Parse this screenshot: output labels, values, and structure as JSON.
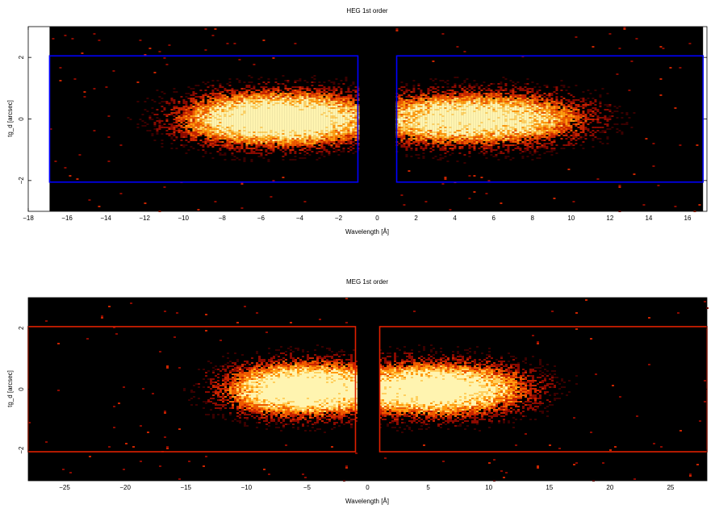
{
  "chart_data": [
    {
      "type": "heatmap",
      "title": "HEG 1st order",
      "xlabel": "Wavelength [Å]",
      "ylabel": "tg_d [arcsec]",
      "xlim": [
        -18,
        17
      ],
      "ylim": [
        -3,
        3
      ],
      "data_extent_x": [
        -16.9,
        16.8
      ],
      "grid": false,
      "background": "#000000",
      "colormap": [
        "#3a0000",
        "#8b0a00",
        "#c82400",
        "#ee5a00",
        "#ff9a10",
        "#ffd060",
        "#fff4b0"
      ],
      "x_ticks": [
        -18,
        -16,
        -14,
        -12,
        -10,
        -8,
        -6,
        -4,
        -2,
        0,
        2,
        4,
        6,
        8,
        10,
        12,
        14,
        16
      ],
      "y_ticks": [
        -2,
        0,
        2
      ],
      "regions": [
        {
          "x0": -16.9,
          "x1": -1.0,
          "y0": -2.05,
          "y1": 2.05,
          "color": "#0000ff"
        },
        {
          "x0": 1.0,
          "x1": 16.8,
          "y0": -2.05,
          "y1": 2.05,
          "color": "#0000ff"
        }
      ],
      "bright_spots": [
        {
          "x": -3.1,
          "y": 0.0,
          "intensity": 1.0
        },
        {
          "x": -6.0,
          "y": 0.0,
          "intensity": 0.8
        },
        {
          "x": -7.8,
          "y": 0.0,
          "intensity": 0.55
        },
        {
          "x": 3.1,
          "y": 0.0,
          "intensity": 1.0
        },
        {
          "x": 6.6,
          "y": 0.0,
          "intensity": 0.75
        },
        {
          "x": 9.0,
          "y": 0.0,
          "intensity": 0.35
        }
      ]
    },
    {
      "type": "heatmap",
      "title": "MEG 1st order",
      "xlabel": "Wavelength [Å]",
      "ylabel": "tg_d [arcsec]",
      "xlim": [
        -28,
        28
      ],
      "ylim": [
        -3,
        3
      ],
      "data_extent_x": [
        -28,
        28
      ],
      "grid": false,
      "background": "#000000",
      "colormap": [
        "#3a0000",
        "#8b0a00",
        "#c82400",
        "#ee5a00",
        "#ff9a10",
        "#ffd060",
        "#fff4b0"
      ],
      "x_ticks": [
        -25,
        -20,
        -15,
        -10,
        -5,
        0,
        5,
        10,
        15,
        20,
        25
      ],
      "y_ticks": [
        -2,
        0,
        2
      ],
      "regions": [
        {
          "x0": -28,
          "x1": -1.0,
          "y0": -2.05,
          "y1": 2.05,
          "color": "#e02000"
        },
        {
          "x0": 1.0,
          "x1": 28,
          "y0": -2.05,
          "y1": 2.05,
          "color": "#e02000"
        }
      ],
      "bright_spots": [
        {
          "x": -7.5,
          "y": 0.0,
          "intensity": 1.0
        },
        {
          "x": -3.5,
          "y": 0.0,
          "intensity": 0.95
        },
        {
          "x": 2.8,
          "y": 0.0,
          "intensity": 0.8
        },
        {
          "x": 7.0,
          "y": 0.0,
          "intensity": 1.0
        },
        {
          "x": 11.0,
          "y": 0.0,
          "intensity": 0.35
        }
      ]
    }
  ]
}
